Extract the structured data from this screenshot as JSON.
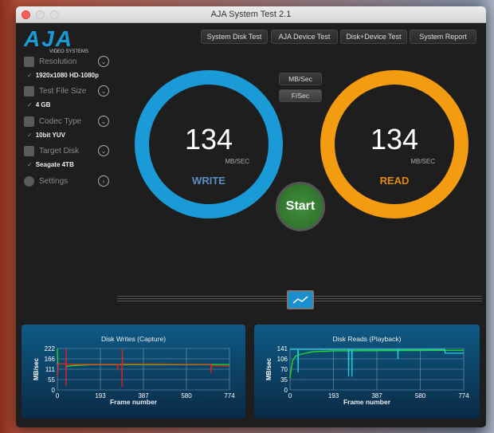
{
  "window": {
    "title": "AJA System Test 2.1"
  },
  "logo": {
    "text": "AJA",
    "sub": "VIDEO SYSTEMS"
  },
  "sidebar": {
    "items": [
      {
        "label": "Resolution",
        "icon": "resolution-icon",
        "value": "1920x1080 HD-1080p"
      },
      {
        "label": "Test File Size",
        "icon": "stack-icon",
        "value": "4 GB"
      },
      {
        "label": "Codec Type",
        "icon": "codec-icon",
        "value": "10bit YUV"
      },
      {
        "label": "Target Disk",
        "icon": "disk-icon",
        "value": "Seagate 4TB"
      },
      {
        "label": "Settings",
        "icon": "gear-icon"
      }
    ]
  },
  "tabs": [
    "System Disk Test",
    "AJA Device Test",
    "Disk+Device Test",
    "System Report"
  ],
  "units": {
    "mb": "MB/Sec",
    "f": "F/Sec",
    "selected": "F/Sec"
  },
  "write": {
    "value": "134",
    "unit": "MB/SEC",
    "label": "WRITE",
    "color": "#1a9ad6"
  },
  "read": {
    "value": "134",
    "unit": "MB/SEC",
    "label": "READ",
    "color": "#f39c12"
  },
  "start_label": "Start",
  "chart_data": [
    {
      "type": "line",
      "title": "Disk Writes (Capture)",
      "xlabel": "Frame number",
      "ylabel": "MB/sec",
      "xlim": [
        0,
        774
      ],
      "ylim": [
        0,
        222
      ],
      "xticks": [
        "0",
        "193",
        "387",
        "580",
        "774"
      ],
      "yticks": [
        "0",
        "55",
        "111",
        "166",
        "222"
      ],
      "grid": true,
      "series": [
        {
          "color": "#22dd22",
          "points": [
            [
              0,
              222
            ],
            [
              2,
              140
            ],
            [
              40,
              140
            ],
            [
              42,
              125
            ],
            [
              60,
              130
            ],
            [
              150,
              135
            ],
            [
              774,
              136
            ]
          ]
        },
        {
          "color": "#dd2222",
          "points": [
            [
              0,
              70
            ],
            [
              5,
              140
            ],
            [
              38,
              140
            ],
            [
              39,
              20
            ],
            [
              40,
              222
            ],
            [
              41,
              138
            ],
            [
              270,
              138
            ],
            [
              271,
              105
            ],
            [
              272,
              138
            ],
            [
              290,
              138
            ],
            [
              291,
              15
            ],
            [
              292,
              222
            ],
            [
              293,
              140
            ],
            [
              690,
              138
            ],
            [
              691,
              90
            ],
            [
              692,
              128
            ],
            [
              774,
              128
            ]
          ]
        }
      ]
    },
    {
      "type": "line",
      "title": "Disk Reads (Playback)",
      "xlabel": "Frame number",
      "ylabel": "MB/sec",
      "xlim": [
        0,
        774
      ],
      "ylim": [
        0,
        141
      ],
      "xticks": [
        "0",
        "193",
        "387",
        "580",
        "774"
      ],
      "yticks": [
        "0",
        "35",
        "70",
        "106",
        "141"
      ],
      "grid": true,
      "series": [
        {
          "color": "#22dd22",
          "points": [
            [
              0,
              40
            ],
            [
              5,
              70
            ],
            [
              12,
              100
            ],
            [
              25,
              115
            ],
            [
              40,
              120
            ],
            [
              100,
              130
            ],
            [
              200,
              133
            ],
            [
              774,
              135
            ]
          ]
        },
        {
          "color": "#22ccdd",
          "points": [
            [
              0,
              138
            ],
            [
              35,
              138
            ],
            [
              36,
              60
            ],
            [
              37,
              138
            ],
            [
              260,
              138
            ],
            [
              261,
              45
            ],
            [
              262,
              138
            ],
            [
              275,
              138
            ],
            [
              276,
              45
            ],
            [
              277,
              138
            ],
            [
              480,
              138
            ],
            [
              481,
              105
            ],
            [
              482,
              138
            ],
            [
              690,
              138
            ],
            [
              691,
              125
            ],
            [
              774,
              125
            ]
          ]
        }
      ]
    }
  ]
}
